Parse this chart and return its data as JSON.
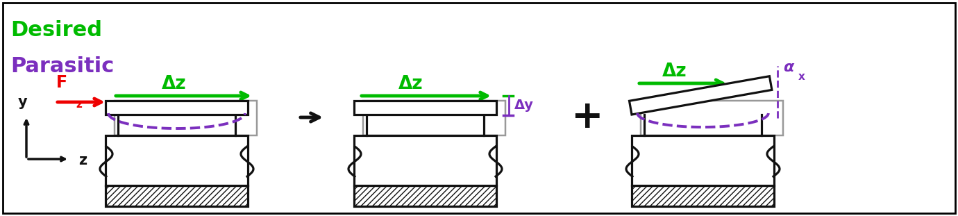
{
  "fig_width": 13.8,
  "fig_height": 3.11,
  "dpi": 100,
  "green_color": "#00bb00",
  "purple_color": "#7B2FBE",
  "red_color": "#ee0000",
  "gray_color": "#999999",
  "black_color": "#111111",
  "legend_desired": "Desired",
  "legend_parasitic": "Parasitic",
  "label_dz": "Δz",
  "label_dy": "Δy",
  "label_ax": "α",
  "label_ax_sub": "x",
  "label_Fz": "F",
  "label_Fz_sub": "z",
  "axis_y": "y",
  "axis_z": "z"
}
